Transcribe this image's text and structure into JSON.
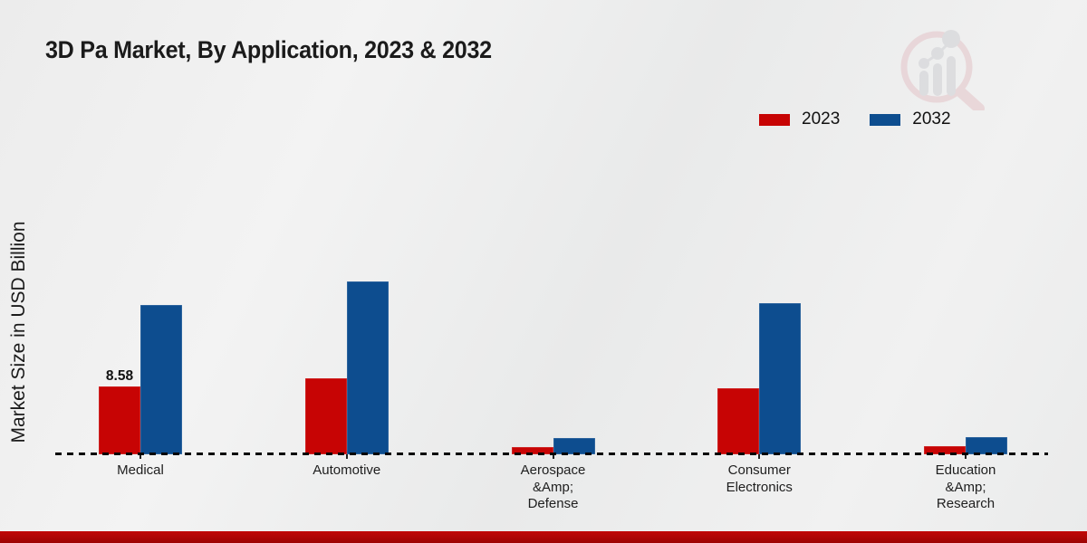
{
  "title": "3D Pa Market, By Application, 2023 & 2032",
  "ylabel": "Market Size in USD Billion",
  "legend": [
    {
      "label": "2023",
      "color": "#c70404"
    },
    {
      "label": "2032",
      "color": "#0d4d8f"
    }
  ],
  "colors": {
    "background": "#ebecec",
    "bar_2023": "#c70404",
    "bar_2032": "#0d4d8f",
    "footer_band": "#b00606",
    "baseline": "#050505",
    "text": "#1b1b1b"
  },
  "chart_data": {
    "type": "bar",
    "title": "3D Pa Market, By Application, 2023 & 2032",
    "xlabel": "",
    "ylabel": "Market Size in USD Billion",
    "categories": [
      "Medical",
      "Automotive",
      "Aerospace &Amp; Defense",
      "Consumer Electronics",
      "Education &Amp; Research"
    ],
    "category_label_lines": [
      [
        "Medical"
      ],
      [
        "Automotive"
      ],
      [
        "Aerospace",
        "&Amp;",
        "Defense"
      ],
      [
        "Consumer",
        "Electronics"
      ],
      [
        "Education",
        "&Amp;",
        "Research"
      ]
    ],
    "series": [
      {
        "name": "2023",
        "color": "#c70404",
        "values": [
          8.58,
          9.54,
          0.91,
          8.29,
          1.02
        ]
      },
      {
        "name": "2032",
        "color": "#0d4d8f",
        "values": [
          18.75,
          21.7,
          2.04,
          18.97,
          2.16
        ]
      }
    ],
    "bar_value_labels": [
      {
        "category": "Medical",
        "series": "2023",
        "text": "8.58"
      }
    ],
    "ylim": [
      0,
      25
    ],
    "grid": false,
    "legend_position": "top-right",
    "baseline_style": "dashed"
  }
}
